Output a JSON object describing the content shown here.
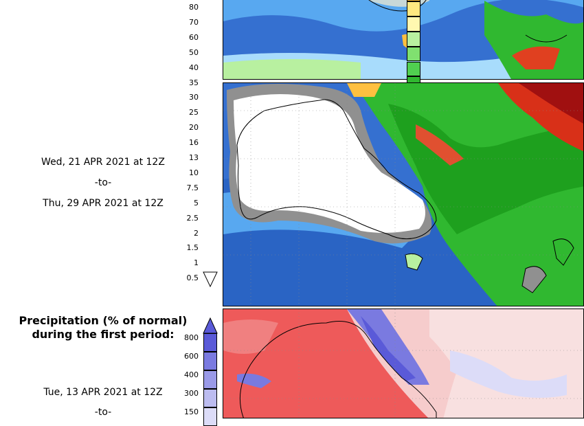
{
  "precip_scale": {
    "labels": [
      "80",
      "70",
      "60",
      "50",
      "40",
      "35",
      "30",
      "25",
      "20",
      "16",
      "13",
      "10",
      "7.5",
      "5",
      "2.5",
      "2",
      "1.5",
      "1",
      "0.5"
    ],
    "colors": [
      "#ffc040",
      "#ffe880",
      "#fff8b0",
      "#b8f0a0",
      "#80e070",
      "#50d050",
      "#30b830",
      "#1ea01e",
      "#1a60c8",
      "#2878d8",
      "#3c90e8",
      "#58a8f0",
      "#80c8f8",
      "#a8dcfc",
      "#707070",
      "#909090",
      "#a8a8a8",
      "#c0c0c0"
    ]
  },
  "second_period": {
    "line1": "Wed, 21 APR 2021 at 12Z",
    "line2": "-to-",
    "line3": "Thu, 29 APR 2021 at 12Z"
  },
  "anomaly_title": {
    "line1": "Precipitation (% of normal)",
    "line2": "during the first period:"
  },
  "anomaly_scale": {
    "labels": [
      "800",
      "600",
      "400",
      "300",
      "150"
    ],
    "colors": [
      "#5a5ad8",
      "#7a7ae0",
      "#9a9ae8",
      "#bcbcf0",
      "#dcdcf8"
    ]
  },
  "first_period": {
    "line1": "Tue, 13 APR 2021 at 12Z",
    "line2": "-to-"
  }
}
